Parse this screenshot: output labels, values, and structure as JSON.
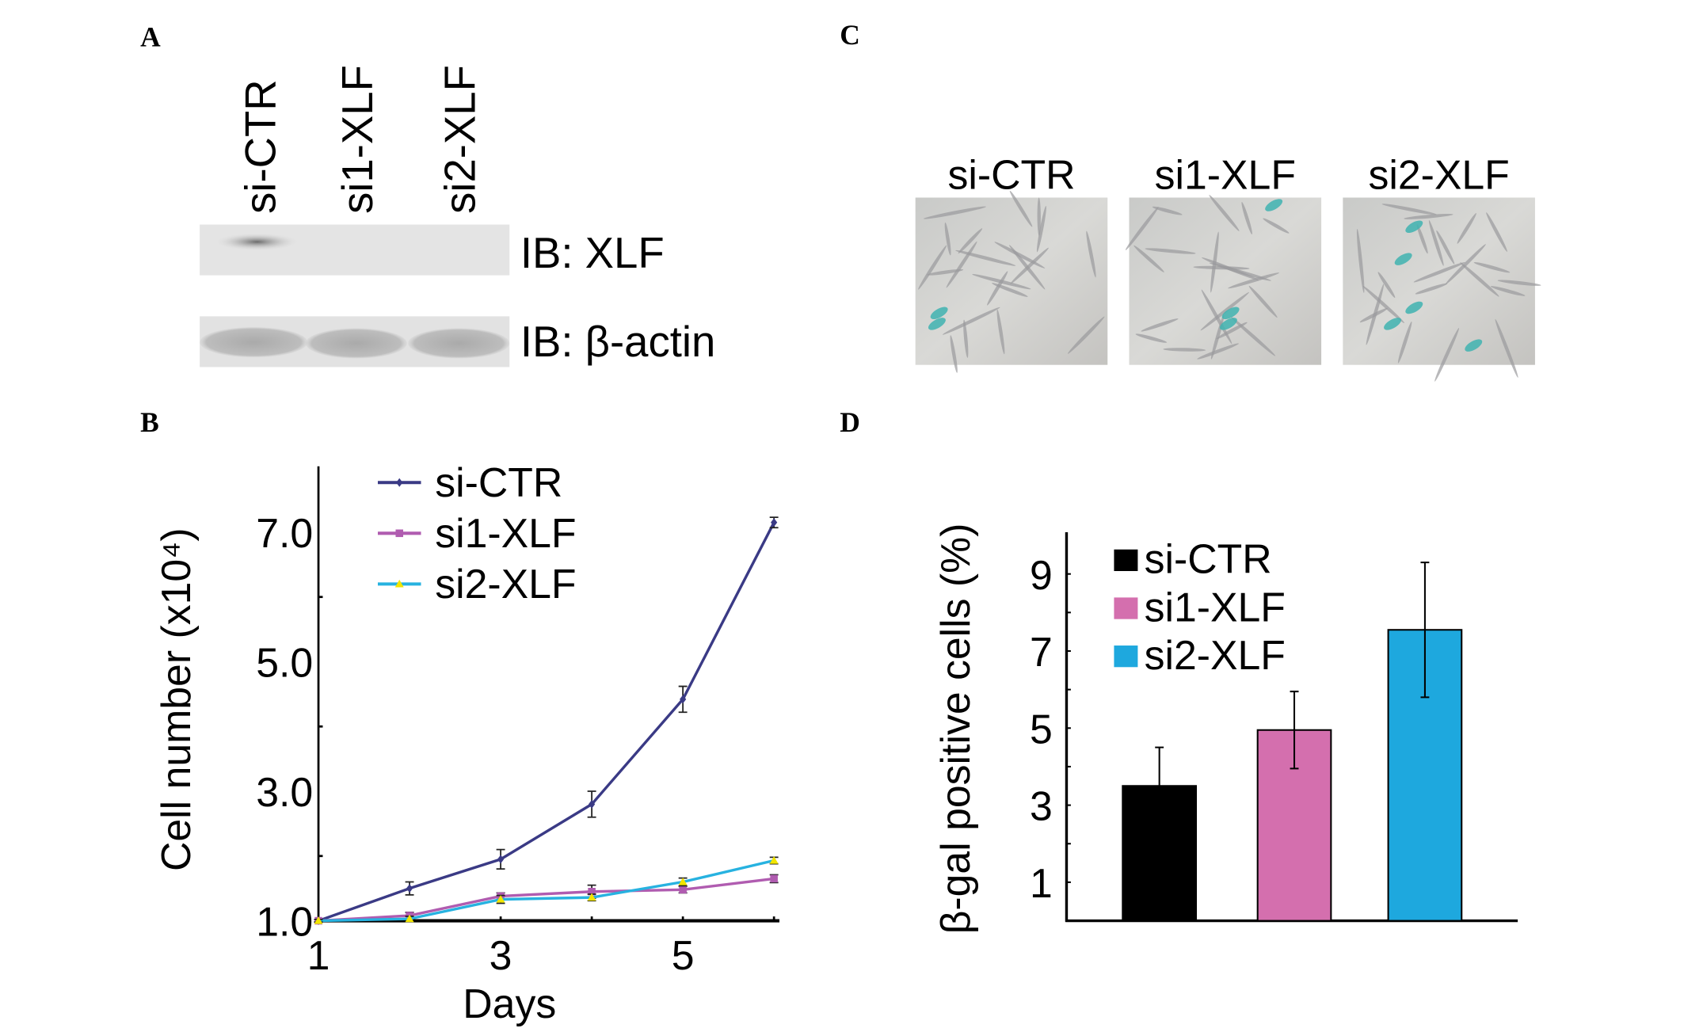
{
  "panels": {
    "a": "A",
    "b": "B",
    "c": "C",
    "d": "D"
  },
  "blot": {
    "lanes": [
      "si-CTR",
      "si1-XLF",
      "si2-XLF"
    ],
    "rows": [
      "IB: XLF",
      "IB: β-actin"
    ]
  },
  "micro": {
    "labels": [
      "si-CTR",
      "si1-XLF",
      "si2-XLF"
    ]
  },
  "colors": {
    "si_ctr_line": "#3a3a85",
    "si1_line": "#b05cb0",
    "si2_line": "#27b2e0",
    "bar_black": "#000000",
    "bar_pink": "#d46fae",
    "bar_blue": "#1ea8de"
  },
  "chart_data": [
    {
      "type": "line",
      "title": "",
      "xlabel": "Days",
      "ylabel": "Cell number (x10⁴)",
      "x": [
        1,
        2,
        3,
        4,
        5,
        6
      ],
      "xticks": [
        "1",
        "3",
        "5"
      ],
      "yticks": [
        "1.0",
        "3.0",
        "5.0",
        "7.0"
      ],
      "xlim": [
        1,
        6
      ],
      "ylim": [
        1,
        8
      ],
      "legend": "top-left",
      "series": [
        {
          "name": "si-CTR",
          "values": [
            1.0,
            1.5,
            1.95,
            2.8,
            4.42,
            7.15
          ],
          "errors": [
            0.02,
            0.1,
            0.15,
            0.2,
            0.2,
            0.08
          ]
        },
        {
          "name": "si1-XLF",
          "values": [
            1.0,
            1.08,
            1.38,
            1.45,
            1.48,
            1.65
          ],
          "errors": [
            0.02,
            0.05,
            0.05,
            0.1,
            0.05,
            0.06
          ]
        },
        {
          "name": "si2-XLF",
          "values": [
            1.0,
            1.03,
            1.33,
            1.36,
            1.6,
            1.93
          ],
          "errors": [
            0.02,
            0.04,
            0.06,
            0.05,
            0.06,
            0.05
          ]
        }
      ]
    },
    {
      "type": "bar",
      "title": "",
      "xlabel": "",
      "ylabel": "β-gal positive cells (%)",
      "categories": [
        "si-CTR",
        "si1-XLF",
        "si2-XLF"
      ],
      "values": [
        3.5,
        4.95,
        7.55
      ],
      "errors": [
        1.0,
        1.0,
        1.75
      ],
      "yticks": [
        "1",
        "3",
        "5",
        "7",
        "9"
      ],
      "ylim": [
        0,
        10
      ],
      "legend": "top-left"
    }
  ]
}
